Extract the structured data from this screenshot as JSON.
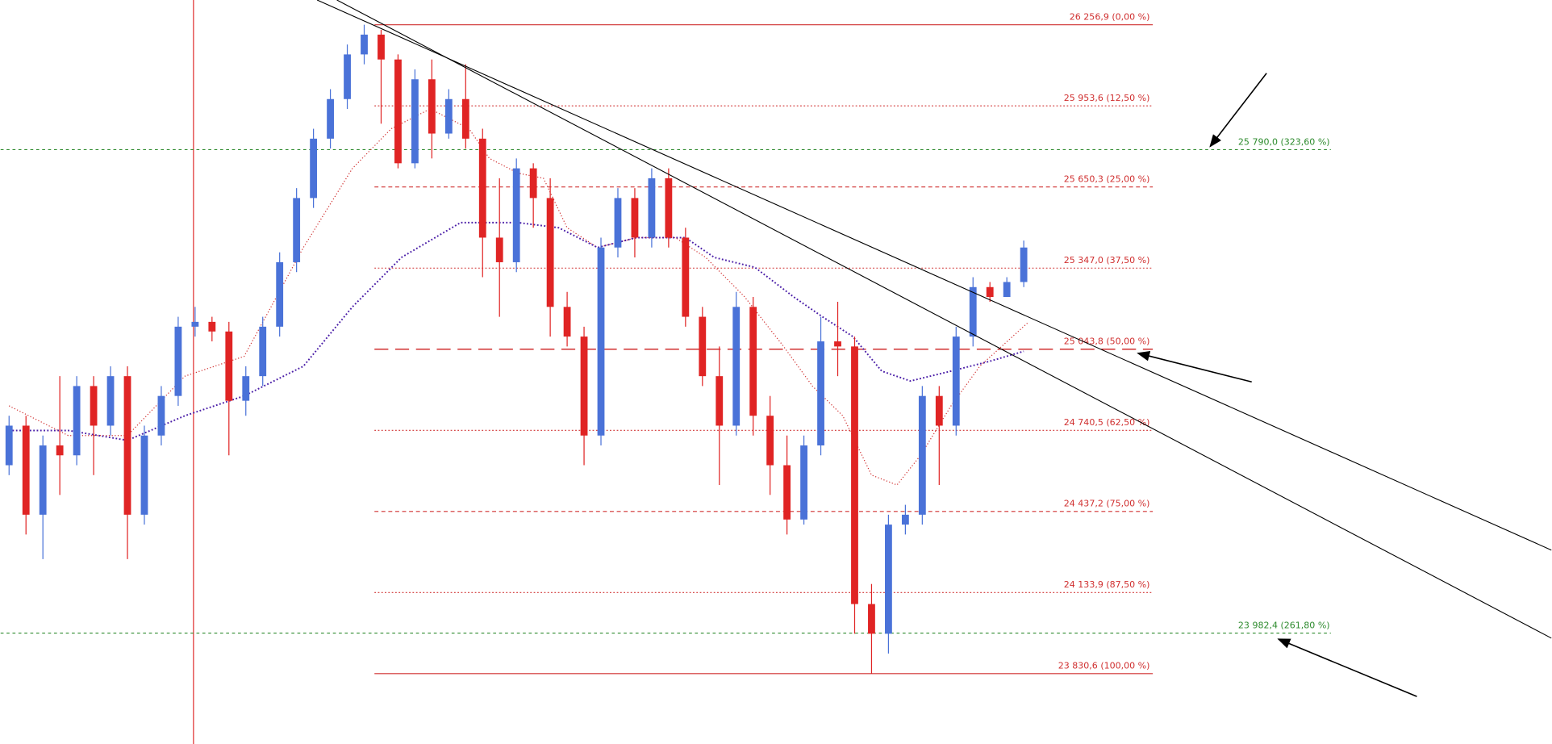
{
  "chart_data": {
    "type": "candlestick",
    "up_color": "#4a72d8",
    "down_color": "#e02424",
    "xlim": [
      -0.5,
      91.2
    ],
    "ylim": [
      23567.7,
      26349.4
    ],
    "open": [
      24610,
      24758,
      24425,
      24684,
      24647,
      24906,
      24758,
      24943,
      24425,
      24721,
      24869,
      25128,
      25146,
      25110,
      24851,
      24943,
      25128,
      25369,
      25609,
      25831,
      25979,
      26146,
      26220,
      26127,
      25739,
      26053,
      25850,
      25979,
      25831,
      25461,
      25369,
      25720,
      25609,
      25202,
      25091,
      24721,
      25424,
      25609,
      25461,
      25683,
      25461,
      25165,
      24943,
      24758,
      25202,
      24795,
      24610,
      24407,
      24684,
      25073,
      25054,
      24091,
      23980,
      24388,
      24425,
      24869,
      24758,
      25091,
      25276,
      25239,
      25295
    ],
    "high": [
      24795,
      24795,
      24721,
      24943,
      24943,
      24943,
      24980,
      24980,
      24758,
      24906,
      25165,
      25202,
      25165,
      25146,
      24980,
      25165,
      25406,
      25646,
      25868,
      26016,
      26183,
      26257,
      26238,
      26146,
      26090,
      26127,
      26016,
      26109,
      25868,
      25683,
      25757,
      25739,
      25683,
      25258,
      25128,
      25461,
      25646,
      25646,
      25720,
      25720,
      25498,
      25202,
      25054,
      25258,
      25239,
      24869,
      24721,
      24721,
      25165,
      25221,
      25091,
      24166,
      24425,
      24462,
      24906,
      24906,
      25128,
      25313,
      25295,
      25313,
      25450
    ],
    "low": [
      24573,
      24351,
      24259,
      24499,
      24610,
      24573,
      24721,
      24259,
      24388,
      24684,
      24832,
      25091,
      25073,
      24647,
      24795,
      24906,
      25091,
      25332,
      25572,
      25794,
      25942,
      26109,
      25887,
      25720,
      25720,
      25757,
      25831,
      25794,
      25313,
      25165,
      25332,
      25498,
      25091,
      25054,
      24610,
      24684,
      25387,
      25387,
      25424,
      25424,
      25128,
      24906,
      24536,
      24721,
      24721,
      24499,
      24351,
      24388,
      24647,
      24943,
      23980,
      23831,
      23906,
      24351,
      24388,
      24536,
      24721,
      25054,
      25221,
      25239,
      25276
    ],
    "close": [
      24758,
      24425,
      24684,
      24647,
      24906,
      24758,
      24943,
      24425,
      24721,
      24869,
      25128,
      25146,
      25110,
      24851,
      24943,
      25128,
      25369,
      25609,
      25831,
      25979,
      26146,
      26220,
      26127,
      25739,
      26053,
      25850,
      25979,
      25831,
      25461,
      25369,
      25720,
      25609,
      25202,
      25091,
      24721,
      25424,
      25609,
      25461,
      25683,
      25461,
      25165,
      24943,
      24758,
      25202,
      24795,
      24610,
      24407,
      24684,
      25073,
      25054,
      24091,
      23980,
      24388,
      24425,
      24869,
      24758,
      25091,
      25276,
      25239,
      25295,
      25424
    ],
    "series": [
      {
        "color": "#d03030",
        "style": "dotted",
        "x": [
          0,
          3.5,
          7,
          10.4,
          13.9,
          17.4,
          20.3,
          22.6,
          24.9,
          27.2,
          28.4,
          30.1,
          31.6,
          33,
          34.8,
          37.1,
          39.4,
          41.2,
          43.5,
          45.8,
          47.5,
          49.3,
          51,
          52.5,
          53.9,
          55.7,
          57.4,
          60.3
        ],
        "values": [
          24832,
          24721,
          24721,
          24943,
          25017,
          25424,
          25720,
          25868,
          25942,
          25868,
          25757,
          25702,
          25683,
          25498,
          25424,
          25461,
          25461,
          25387,
          25239,
          25054,
          24906,
          24795,
          24573,
          24536,
          24647,
          24832,
          24980,
          25146
        ]
      },
      {
        "color": "#4b1fa8",
        "style": "dotted-bold",
        "x": [
          0,
          3.5,
          7,
          10.4,
          13.9,
          17.4,
          20.3,
          23.2,
          26.7,
          30.1,
          32.5,
          34.8,
          37.1,
          40,
          41.7,
          44.1,
          46.4,
          48.1,
          49.9,
          51.6,
          53.3,
          55.7,
          58,
          60
        ],
        "values": [
          24740,
          24740,
          24703,
          24795,
          24869,
          24980,
          25202,
          25387,
          25517,
          25517,
          25498,
          25424,
          25461,
          25461,
          25387,
          25350,
          25239,
          25165,
          25091,
          24962,
          24925,
          24962,
          24999,
          25036
        ]
      }
    ],
    "levels": [
      {
        "value": 26256.9,
        "label": "26 256,9 (0,00 %)",
        "color": "#d03030",
        "style": "solid"
      },
      {
        "value": 25953.6,
        "label": "25 953,6 (12,50 %)",
        "color": "#d03030",
        "style": "dotted"
      },
      {
        "value": 25790.0,
        "label": "25 790,0 (323,60 %)",
        "color": "#2e8b2e",
        "style": "green"
      },
      {
        "value": 25650.3,
        "label": "25 650,3 (25,00 %)",
        "color": "#d03030",
        "style": "dashed"
      },
      {
        "value": 25347.0,
        "label": "25 347,0 (37,50 %)",
        "color": "#d03030",
        "style": "dotted"
      },
      {
        "value": 25043.8,
        "label": "25 043,8 (50,00 %)",
        "color": "#d03030",
        "style": "long"
      },
      {
        "value": 24740.5,
        "label": "24 740,5 (62,50 %)",
        "color": "#d03030",
        "style": "dotted"
      },
      {
        "value": 24437.2,
        "label": "24 437,2 (75,00 %)",
        "color": "#d03030",
        "style": "dashed"
      },
      {
        "value": 24133.9,
        "label": "24 133,9 (87,50 %)",
        "color": "#d03030",
        "style": "dotted"
      },
      {
        "value": 23982.4,
        "label": "23 982,4 (261,80 %)",
        "color": "#2e8b2e",
        "style": "green"
      },
      {
        "value": 23830.6,
        "label": "23 830,6 (100,00 %)",
        "color": "#d03030",
        "style": "solid"
      }
    ]
  }
}
